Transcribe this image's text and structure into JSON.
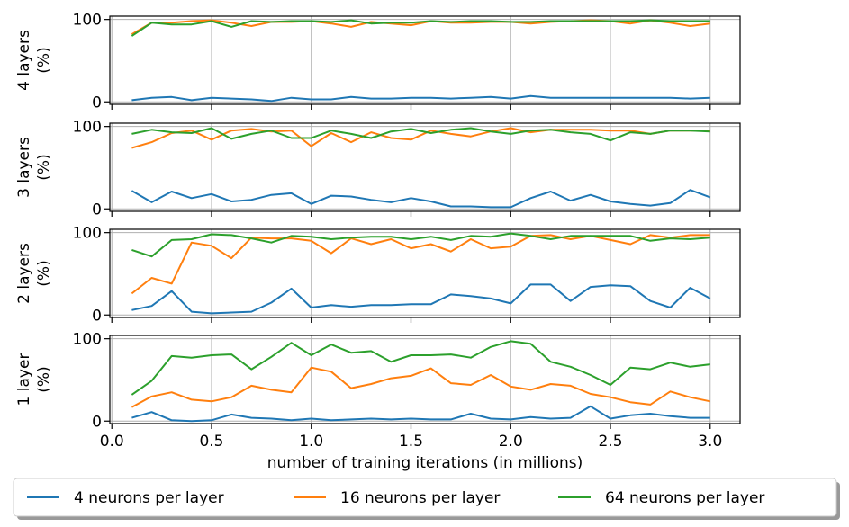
{
  "chart_data": {
    "type": "line",
    "xlabel": "number of training iterations (in millions)",
    "x": [
      0.1,
      0.2,
      0.3,
      0.4,
      0.5,
      0.6,
      0.7,
      0.8,
      0.9,
      1.0,
      1.1,
      1.2,
      1.3,
      1.4,
      1.5,
      1.6,
      1.7,
      1.8,
      1.9,
      2.0,
      2.1,
      2.2,
      2.3,
      2.4,
      2.5,
      2.6,
      2.7,
      2.8,
      2.9,
      3.0
    ],
    "xticks": [
      "0.0",
      "0.5",
      "1.0",
      "1.5",
      "2.0",
      "2.5",
      "3.0"
    ],
    "xtick_values": [
      0.0,
      0.5,
      1.0,
      1.5,
      2.0,
      2.5,
      3.0
    ],
    "xlim": [
      -0.01,
      3.15
    ],
    "ylim": [
      -3,
      104
    ],
    "yticks": [
      "0",
      "100"
    ],
    "ytick_values": [
      0,
      100
    ],
    "grid": "x",
    "colors": {
      "4 neurons per layer": "#1f77b4",
      "16 neurons per layer": "#ff7f0e",
      "64 neurons per layer": "#2ca02c"
    },
    "legend": {
      "placement": "bottom-center",
      "entries": [
        "4 neurons per layer",
        "16 neurons per layer",
        "64 neurons per layer"
      ]
    },
    "panels": [
      {
        "ylabel_line1": "4 layers",
        "ylabel_line2": "(%)",
        "series": [
          {
            "name": "4 neurons per layer",
            "values": [
              2,
              5,
              6,
              2,
              5,
              4,
              3,
              1,
              5,
              3,
              3,
              6,
              4,
              4,
              5,
              5,
              4,
              5,
              6,
              4,
              7,
              5,
              5,
              5,
              5,
              5,
              5,
              5,
              4,
              5
            ]
          },
          {
            "name": "16 neurons per layer",
            "values": [
              82,
              96,
              96,
              98,
              99,
              96,
              92,
              97,
              97,
              98,
              95,
              91,
              97,
              95,
              93,
              98,
              96,
              96,
              97,
              97,
              95,
              97,
              98,
              99,
              98,
              95,
              99,
              96,
              92,
              95
            ]
          },
          {
            "name": "64 neurons per layer",
            "values": [
              80,
              96,
              94,
              94,
              98,
              91,
              98,
              97,
              98,
              98,
              97,
              99,
              95,
              96,
              96,
              98,
              97,
              98,
              98,
              97,
              97,
              98,
              98,
              98,
              98,
              98,
              99,
              98,
              98,
              98
            ]
          }
        ]
      },
      {
        "ylabel_line1": "3 layers",
        "ylabel_line2": "(%)",
        "series": [
          {
            "name": "4 neurons per layer",
            "values": [
              22,
              8,
              21,
              13,
              18,
              9,
              11,
              17,
              19,
              6,
              16,
              15,
              11,
              8,
              13,
              9,
              3,
              3,
              2,
              2,
              13,
              21,
              10,
              17,
              9,
              6,
              4,
              7,
              23,
              14
            ]
          },
          {
            "name": "16 neurons per layer",
            "values": [
              74,
              81,
              92,
              95,
              84,
              95,
              97,
              94,
              95,
              76,
              92,
              81,
              93,
              86,
              84,
              95,
              91,
              88,
              94,
              98,
              93,
              96,
              96,
              96,
              95,
              95,
              91,
              95,
              95,
              95
            ]
          },
          {
            "name": "64 neurons per layer",
            "values": [
              91,
              96,
              93,
              92,
              98,
              85,
              91,
              95,
              86,
              86,
              95,
              91,
              86,
              94,
              97,
              92,
              96,
              98,
              94,
              91,
              95,
              96,
              93,
              91,
              83,
              93,
              91,
              95,
              95,
              94
            ]
          }
        ]
      },
      {
        "ylabel_line1": "2 layers",
        "ylabel_line2": "(%)",
        "series": [
          {
            "name": "4 neurons per layer",
            "values": [
              6,
              11,
              29,
              4,
              2,
              3,
              4,
              15,
              32,
              9,
              12,
              10,
              12,
              12,
              13,
              13,
              25,
              23,
              20,
              14,
              37,
              37,
              17,
              34,
              36,
              35,
              17,
              9,
              33,
              20
            ]
          },
          {
            "name": "16 neurons per layer",
            "values": [
              26,
              45,
              38,
              88,
              84,
              69,
              94,
              93,
              93,
              90,
              75,
              93,
              86,
              92,
              81,
              86,
              77,
              92,
              81,
              83,
              96,
              97,
              92,
              96,
              91,
              86,
              97,
              94,
              97,
              97
            ]
          },
          {
            "name": "64 neurons per layer",
            "values": [
              79,
              71,
              91,
              92,
              98,
              97,
              93,
              88,
              96,
              95,
              92,
              94,
              95,
              95,
              92,
              95,
              91,
              96,
              95,
              99,
              96,
              92,
              96,
              96,
              96,
              96,
              90,
              93,
              92,
              94
            ]
          }
        ]
      },
      {
        "ylabel_line1": "1 layer",
        "ylabel_line2": "(%)",
        "series": [
          {
            "name": "4 neurons per layer",
            "values": [
              4,
              11,
              1,
              0,
              1,
              8,
              4,
              3,
              1,
              3,
              1,
              2,
              3,
              2,
              3,
              2,
              2,
              9,
              3,
              2,
              5,
              3,
              4,
              18,
              3,
              7,
              9,
              6,
              4,
              4
            ]
          },
          {
            "name": "16 neurons per layer",
            "values": [
              17,
              30,
              35,
              26,
              24,
              29,
              43,
              38,
              35,
              65,
              60,
              40,
              45,
              52,
              55,
              64,
              46,
              44,
              56,
              42,
              38,
              45,
              43,
              33,
              29,
              23,
              20,
              36,
              29,
              24
            ]
          },
          {
            "name": "64 neurons per layer",
            "values": [
              32,
              49,
              79,
              77,
              80,
              81,
              63,
              78,
              95,
              80,
              93,
              83,
              85,
              72,
              80,
              80,
              81,
              77,
              90,
              97,
              94,
              72,
              66,
              56,
              44,
              65,
              63,
              71,
              66,
              69
            ]
          }
        ]
      }
    ]
  }
}
